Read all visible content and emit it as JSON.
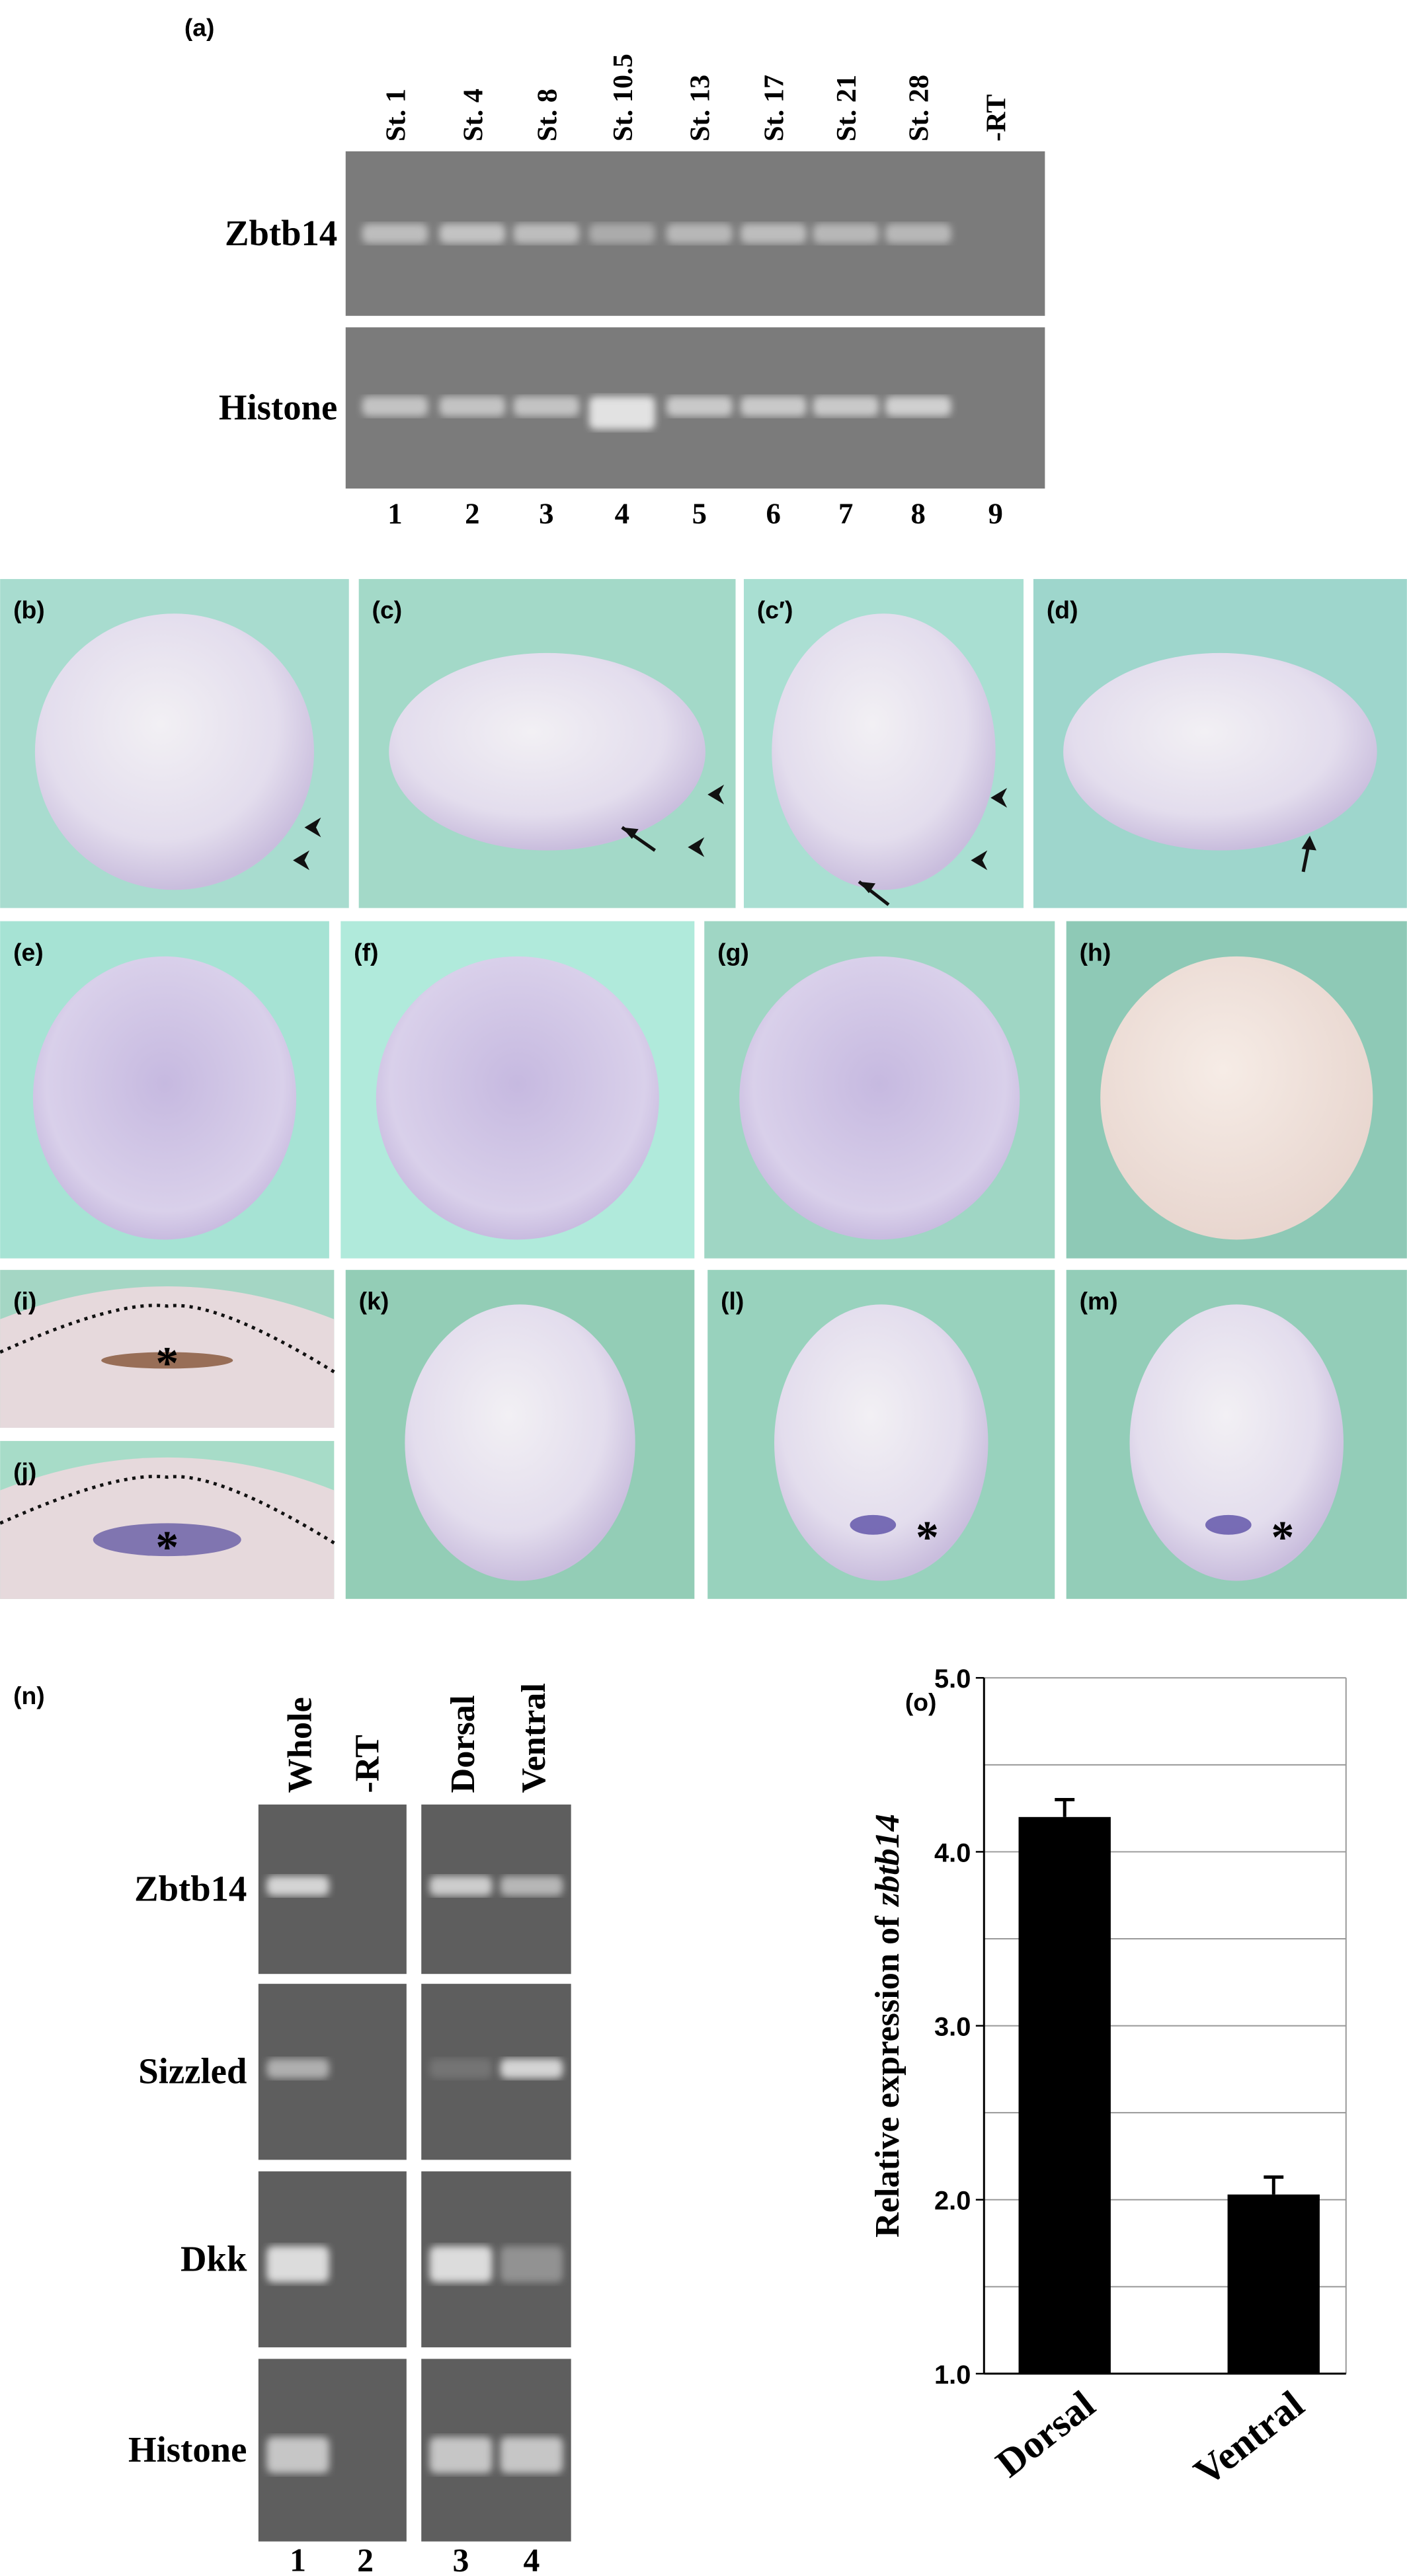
{
  "panel_a": {
    "label": "(a)",
    "lanes": [
      "St. 1",
      "St. 4",
      "St. 8",
      "St. 10.5",
      "St. 13",
      "St. 17",
      "St. 21",
      "St. 28",
      "-RT"
    ],
    "genes": [
      "Zbtb14",
      "Histone"
    ],
    "lane_numbers": [
      "1",
      "2",
      "3",
      "4",
      "5",
      "6",
      "7",
      "8",
      "9"
    ]
  },
  "embryo_panels": [
    {
      "label": "(b)"
    },
    {
      "label": "(c)"
    },
    {
      "label": "(c′)"
    },
    {
      "label": "(d)"
    },
    {
      "label": "(e)"
    },
    {
      "label": "(f)"
    },
    {
      "label": "(g)"
    },
    {
      "label": "(h)"
    },
    {
      "label": "(i)",
      "mark": "*"
    },
    {
      "label": "(j)",
      "mark": "*"
    },
    {
      "label": "(k)"
    },
    {
      "label": "(l)",
      "mark": "*"
    },
    {
      "label": "(m)",
      "mark": "*"
    }
  ],
  "panel_n": {
    "label": "(n)",
    "lanes": [
      "Whole",
      "-RT",
      "Dorsal",
      "Ventral"
    ],
    "genes": [
      "Zbtb14",
      "Sizzled",
      "Dkk",
      "Histone"
    ],
    "lane_numbers": [
      "1",
      "2",
      "3",
      "4"
    ]
  },
  "chart_data": {
    "type": "bar",
    "label": "(o)",
    "ylabel": "Relative expression of",
    "ylabel_gene": "zbtb14",
    "categories": [
      "Dorsal",
      "Ventral"
    ],
    "values": [
      4.2,
      2.03
    ],
    "errors": [
      0.1,
      0.1
    ],
    "color": "#000000",
    "ylim": [
      1,
      5
    ],
    "yticks": [
      {
        "value": 1,
        "label": "1.0"
      },
      {
        "value": 2,
        "label": "2.0"
      },
      {
        "value": 3,
        "label": "3.0"
      },
      {
        "value": 4,
        "label": "4.0"
      },
      {
        "value": 5,
        "label": "5.0"
      }
    ],
    "minor_gridlines": [
      1.5,
      2.5,
      3.5,
      4.5
    ],
    "grid": true
  }
}
